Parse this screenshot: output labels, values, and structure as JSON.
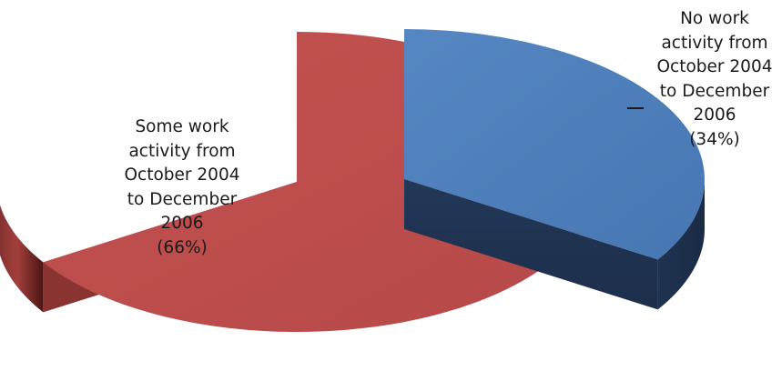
{
  "chart_data": {
    "type": "pie",
    "style": "3d-exploded",
    "title": "",
    "slices": [
      {
        "label_lines": [
          "Some work",
          "activity from",
          "October 2004",
          "to December",
          "2006"
        ],
        "percent_label": "(66%)",
        "value": 66,
        "color": "#c0504d"
      },
      {
        "label_lines": [
          "No work",
          "activity from",
          "October 2004",
          "to December",
          "2006"
        ],
        "percent_label": "(34%)",
        "value": 34,
        "color": "#4f81bd"
      }
    ],
    "legend": "none"
  }
}
